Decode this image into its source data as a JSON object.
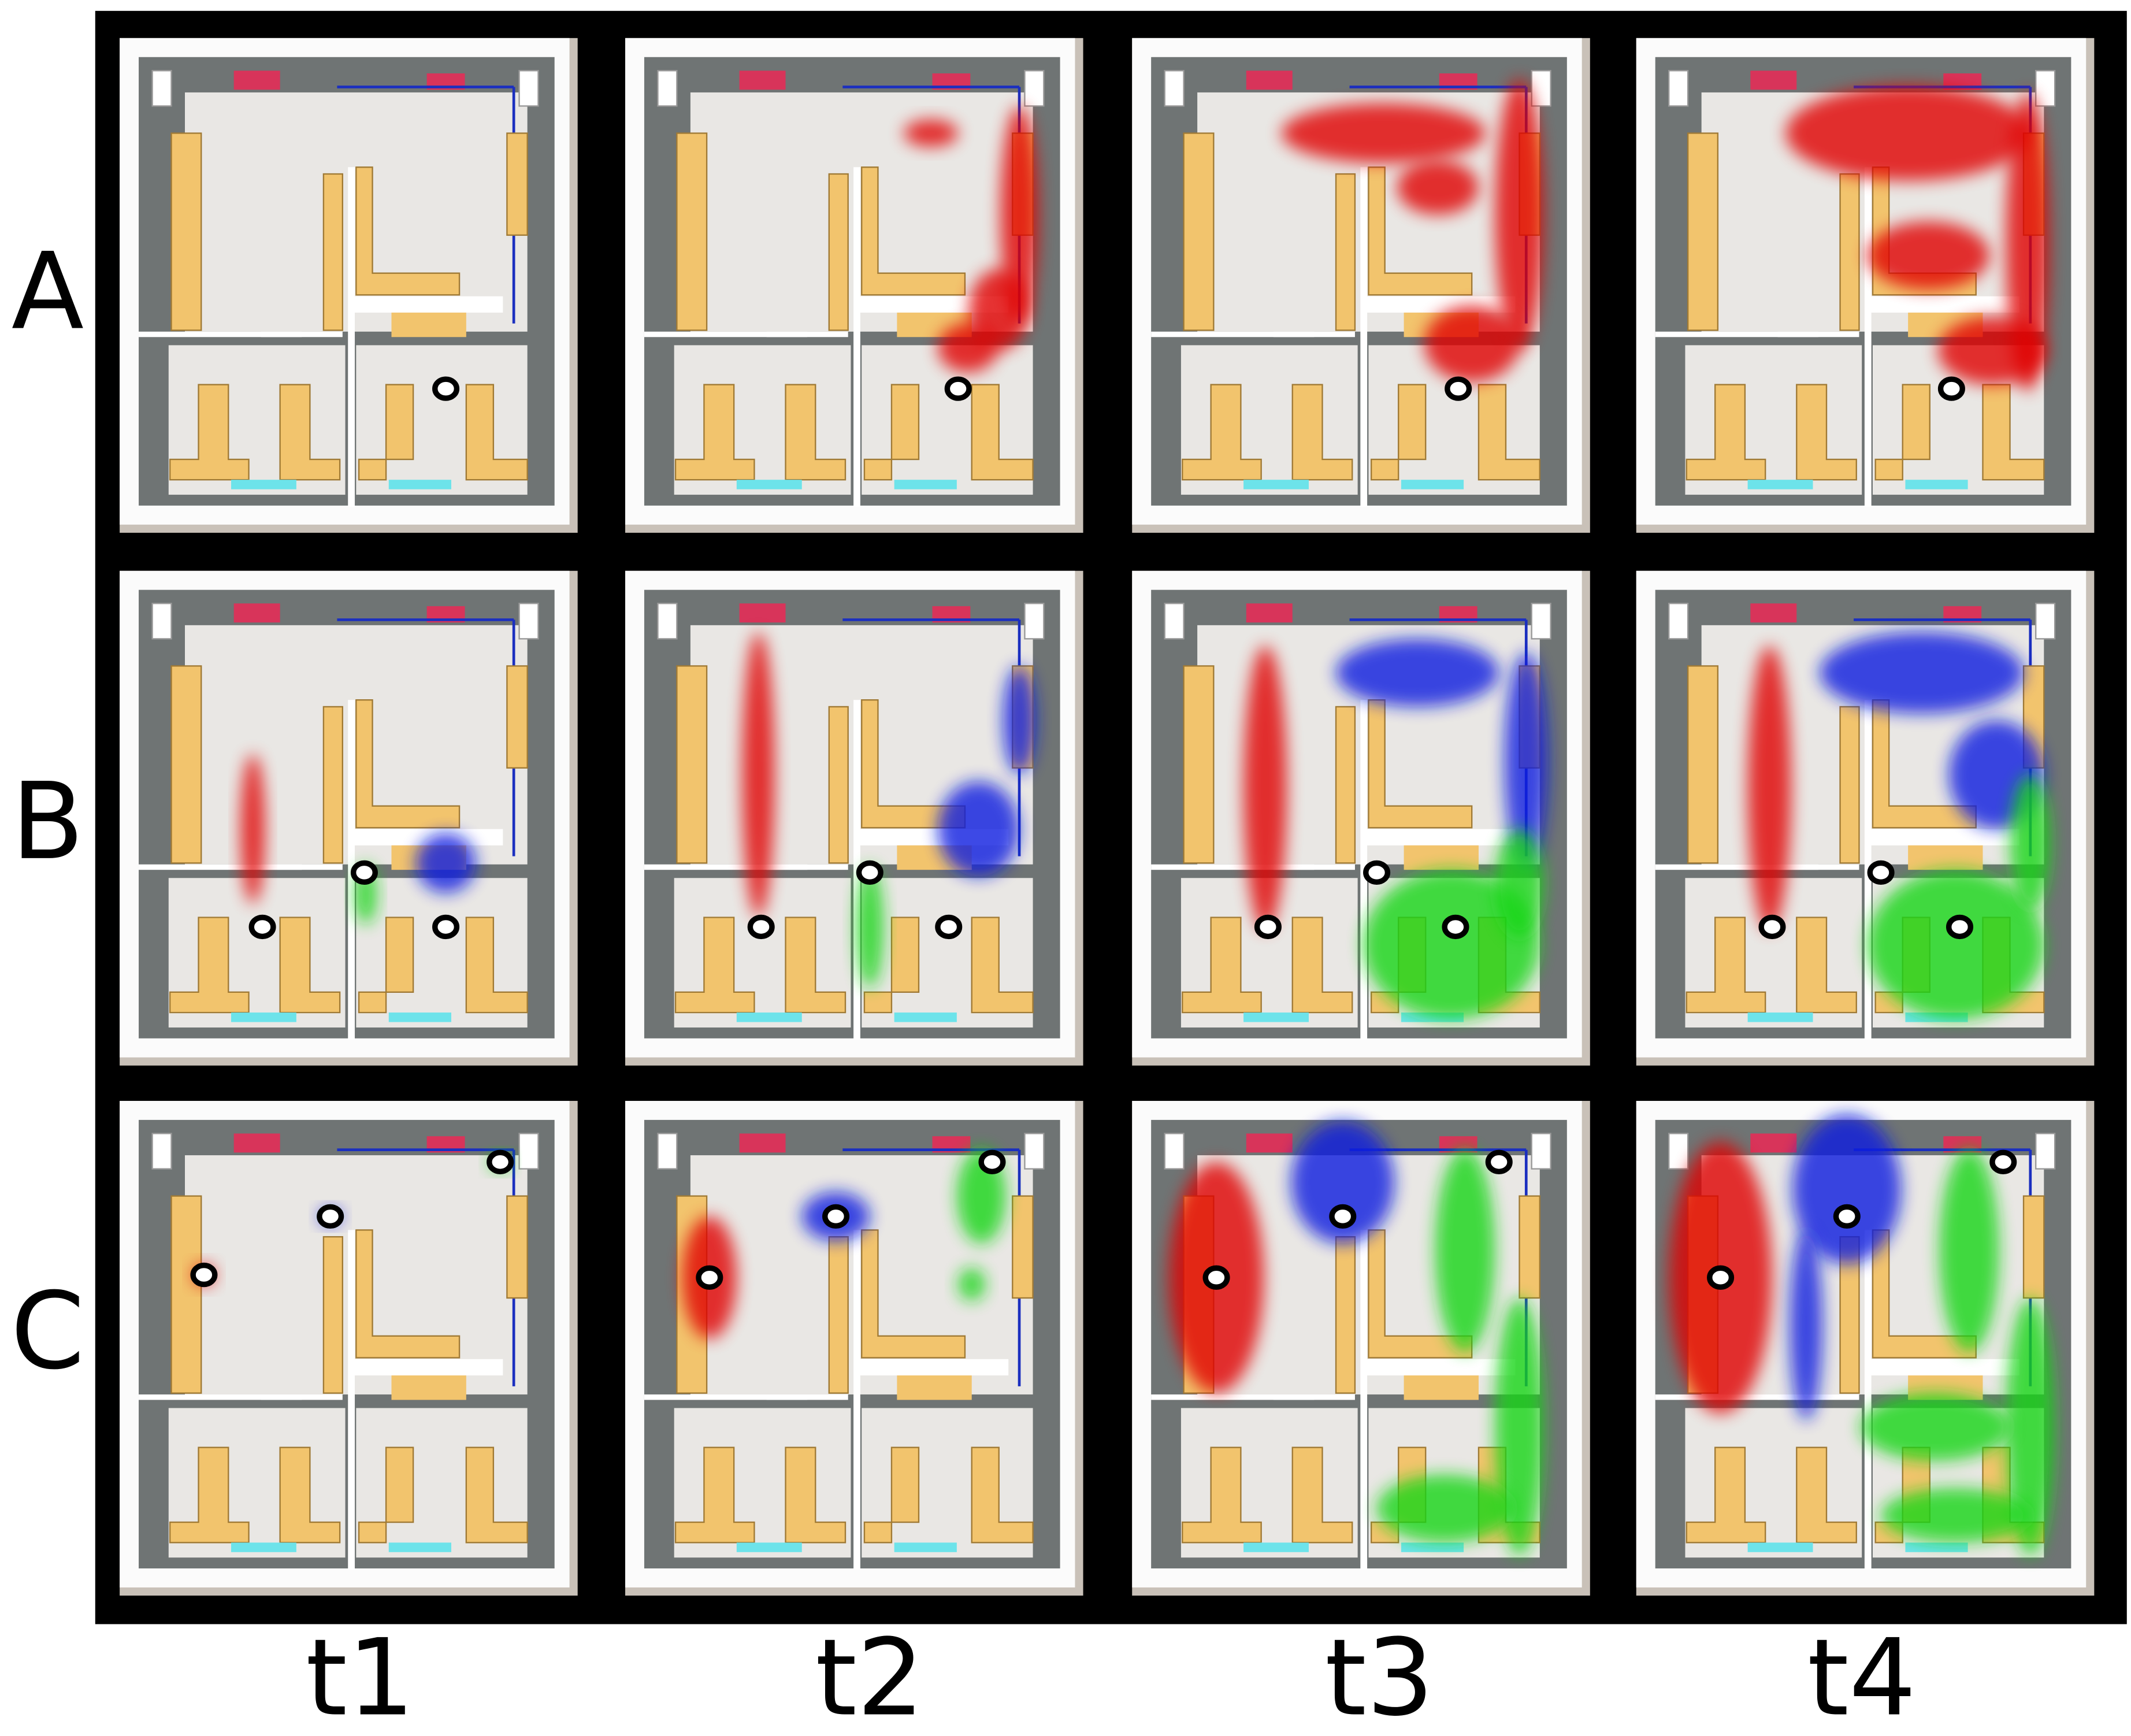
{
  "rows": [
    "A",
    "B",
    "C"
  ],
  "columns": [
    "t1",
    "t2",
    "t3",
    "t4"
  ]
}
